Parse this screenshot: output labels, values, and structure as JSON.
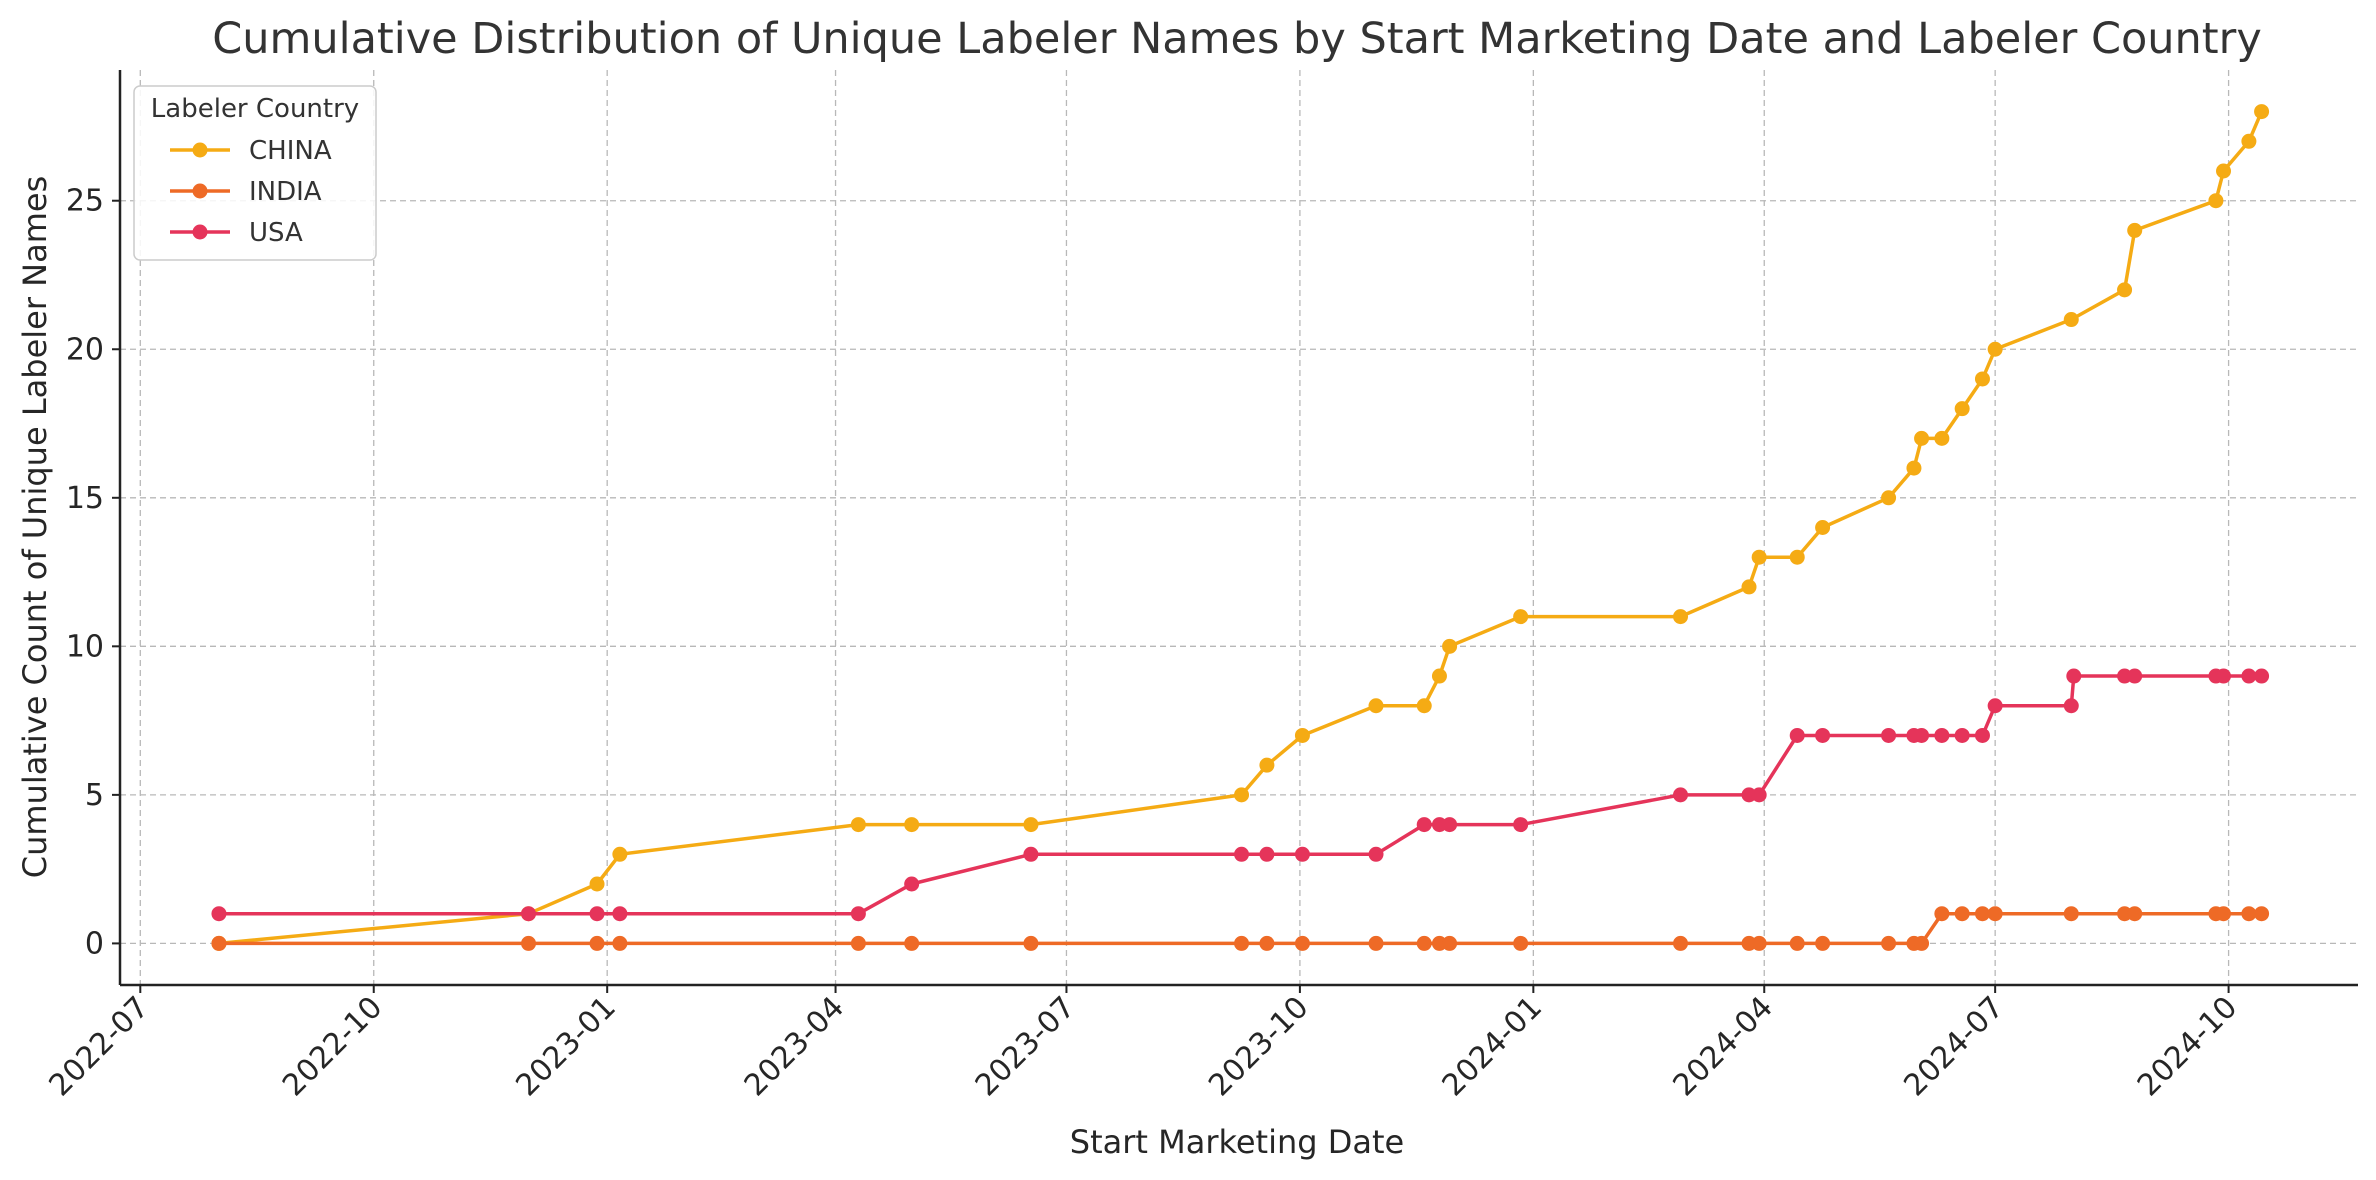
{
  "chart_data": {
    "type": "line",
    "title": "Cumulative Distribution of Unique Labeler Names by Start Marketing Date and Labeler Country",
    "xlabel": "Start Marketing Date",
    "ylabel": "Cumulative Count of Unique Labeler Names",
    "x_axis_type": "date",
    "xlim": [
      "2022-06-23",
      "2024-11-21"
    ],
    "ylim": [
      -1.4,
      29.4
    ],
    "x_ticks": [
      "2022-07",
      "2022-10",
      "2023-01",
      "2023-04",
      "2023-07",
      "2023-10",
      "2024-01",
      "2024-04",
      "2024-07",
      "2024-10"
    ],
    "y_ticks": [
      0,
      5,
      10,
      15,
      20,
      25
    ],
    "grid": true,
    "legend": {
      "title": "Labeler Country",
      "placement": "top-left"
    },
    "colors": {
      "CHINA": "#F5AB14",
      "INDIA": "#EE6A26",
      "USA": "#E5345A"
    },
    "series": [
      {
        "name": "CHINA",
        "color": "#F5AB14",
        "points": [
          [
            "2022-08-01",
            0
          ],
          [
            "2022-12-01",
            1
          ],
          [
            "2022-12-28",
            2
          ],
          [
            "2023-01-06",
            3
          ],
          [
            "2023-04-10",
            4
          ],
          [
            "2023-05-01",
            4
          ],
          [
            "2023-06-17",
            4
          ],
          [
            "2023-09-08",
            5
          ],
          [
            "2023-09-18",
            6
          ],
          [
            "2023-10-02",
            7
          ],
          [
            "2023-10-31",
            8
          ],
          [
            "2023-11-19",
            8
          ],
          [
            "2023-11-25",
            9
          ],
          [
            "2023-11-29",
            10
          ],
          [
            "2023-12-27",
            11
          ],
          [
            "2024-02-28",
            11
          ],
          [
            "2024-03-26",
            12
          ],
          [
            "2024-03-30",
            13
          ],
          [
            "2024-04-14",
            13
          ],
          [
            "2024-04-24",
            14
          ],
          [
            "2024-05-20",
            15
          ],
          [
            "2024-05-30",
            16
          ],
          [
            "2024-06-02",
            17
          ],
          [
            "2024-06-10",
            17
          ],
          [
            "2024-06-18",
            18
          ],
          [
            "2024-06-26",
            19
          ],
          [
            "2024-07-01",
            20
          ],
          [
            "2024-07-31",
            21
          ],
          [
            "2024-08-21",
            22
          ],
          [
            "2024-08-25",
            24
          ],
          [
            "2024-09-26",
            25
          ],
          [
            "2024-09-29",
            26
          ],
          [
            "2024-10-09",
            27
          ],
          [
            "2024-10-14",
            28
          ]
        ]
      },
      {
        "name": "INDIA",
        "color": "#EE6A26",
        "points": [
          [
            "2022-08-01",
            0
          ],
          [
            "2022-12-01",
            0
          ],
          [
            "2022-12-28",
            0
          ],
          [
            "2023-01-06",
            0
          ],
          [
            "2023-04-10",
            0
          ],
          [
            "2023-05-01",
            0
          ],
          [
            "2023-06-17",
            0
          ],
          [
            "2023-09-08",
            0
          ],
          [
            "2023-09-18",
            0
          ],
          [
            "2023-10-02",
            0
          ],
          [
            "2023-10-31",
            0
          ],
          [
            "2023-11-19",
            0
          ],
          [
            "2023-11-25",
            0
          ],
          [
            "2023-11-29",
            0
          ],
          [
            "2023-12-27",
            0
          ],
          [
            "2024-02-28",
            0
          ],
          [
            "2024-03-26",
            0
          ],
          [
            "2024-03-30",
            0
          ],
          [
            "2024-04-14",
            0
          ],
          [
            "2024-04-24",
            0
          ],
          [
            "2024-05-20",
            0
          ],
          [
            "2024-05-30",
            0
          ],
          [
            "2024-06-02",
            0
          ],
          [
            "2024-06-10",
            1
          ],
          [
            "2024-06-18",
            1
          ],
          [
            "2024-06-26",
            1
          ],
          [
            "2024-07-01",
            1
          ],
          [
            "2024-07-31",
            1
          ],
          [
            "2024-08-21",
            1
          ],
          [
            "2024-08-25",
            1
          ],
          [
            "2024-09-26",
            1
          ],
          [
            "2024-09-29",
            1
          ],
          [
            "2024-10-09",
            1
          ],
          [
            "2024-10-14",
            1
          ]
        ]
      },
      {
        "name": "USA",
        "color": "#E5345A",
        "points": [
          [
            "2022-08-01",
            1
          ],
          [
            "2022-12-01",
            1
          ],
          [
            "2022-12-28",
            1
          ],
          [
            "2023-01-06",
            1
          ],
          [
            "2023-04-10",
            1
          ],
          [
            "2023-05-01",
            2
          ],
          [
            "2023-06-17",
            3
          ],
          [
            "2023-09-08",
            3
          ],
          [
            "2023-09-18",
            3
          ],
          [
            "2023-10-02",
            3
          ],
          [
            "2023-10-31",
            3
          ],
          [
            "2023-11-19",
            4
          ],
          [
            "2023-11-25",
            4
          ],
          [
            "2023-11-29",
            4
          ],
          [
            "2023-12-27",
            4
          ],
          [
            "2024-02-28",
            5
          ],
          [
            "2024-03-26",
            5
          ],
          [
            "2024-03-30",
            5
          ],
          [
            "2024-04-14",
            7
          ],
          [
            "2024-04-24",
            7
          ],
          [
            "2024-05-20",
            7
          ],
          [
            "2024-05-30",
            7
          ],
          [
            "2024-06-02",
            7
          ],
          [
            "2024-06-10",
            7
          ],
          [
            "2024-06-18",
            7
          ],
          [
            "2024-06-26",
            7
          ],
          [
            "2024-07-01",
            8
          ],
          [
            "2024-07-31",
            8
          ],
          [
            "2024-08-01",
            9
          ],
          [
            "2024-08-21",
            9
          ],
          [
            "2024-08-25",
            9
          ],
          [
            "2024-09-26",
            9
          ],
          [
            "2024-09-29",
            9
          ],
          [
            "2024-10-09",
            9
          ],
          [
            "2024-10-14",
            9
          ]
        ]
      }
    ]
  }
}
